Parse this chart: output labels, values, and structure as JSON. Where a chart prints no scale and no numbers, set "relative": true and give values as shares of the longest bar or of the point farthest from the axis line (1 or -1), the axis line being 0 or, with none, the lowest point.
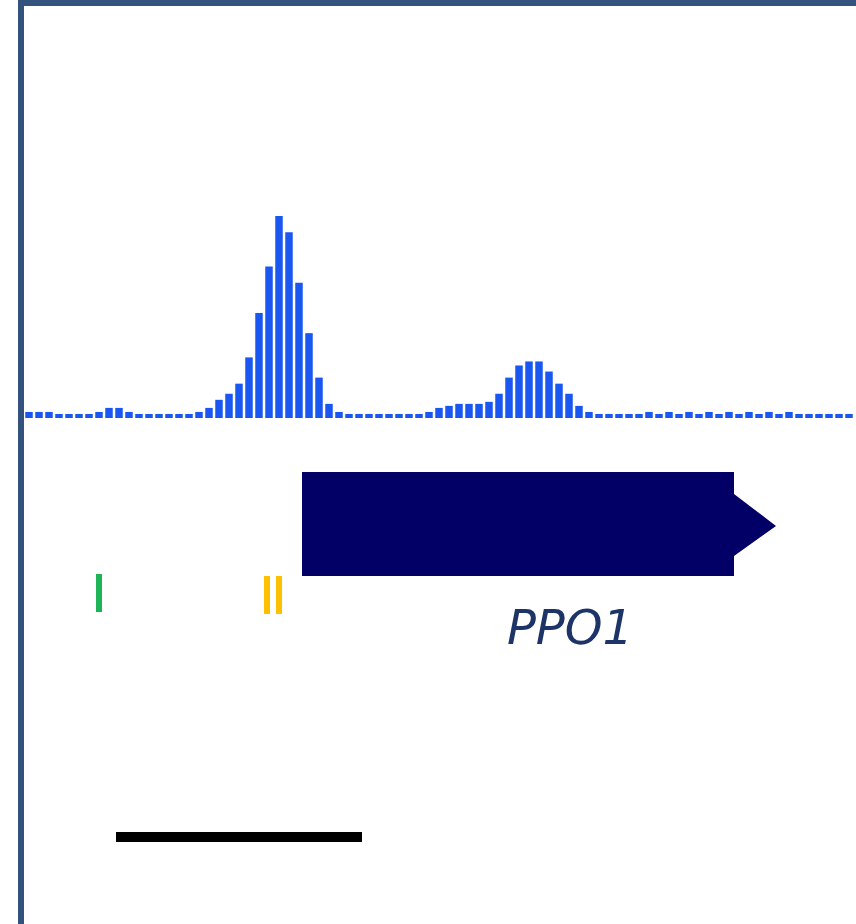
{
  "chart_data": {
    "type": "bar",
    "relative": true,
    "color": "#1a56f0",
    "legend": false,
    "tick_labels": false,
    "categories": [
      null,
      null,
      null,
      null,
      null,
      null,
      null,
      null,
      null,
      null,
      null,
      null,
      null,
      null,
      null,
      null,
      null,
      null,
      null,
      null,
      null,
      null,
      null,
      null,
      null,
      null,
      null,
      null,
      null,
      null,
      null,
      null,
      null,
      null,
      null,
      null,
      null,
      null,
      null,
      null,
      null,
      null,
      null,
      null,
      null,
      null,
      null,
      null,
      null,
      null,
      null,
      null,
      null,
      null,
      null,
      null,
      null,
      null,
      null,
      null,
      null,
      null,
      null,
      null,
      null,
      null,
      null,
      null,
      null,
      null,
      null,
      null,
      null,
      null,
      null,
      null,
      null,
      null,
      null,
      null,
      null,
      null,
      null
    ],
    "values": [
      0.03,
      0.03,
      0.03,
      0.02,
      0.02,
      0.02,
      0.02,
      0.03,
      0.05,
      0.05,
      0.03,
      0.02,
      0.02,
      0.02,
      0.02,
      0.02,
      0.02,
      0.03,
      0.05,
      0.09,
      0.12,
      0.17,
      0.3,
      0.52,
      0.75,
      1,
      0.92,
      0.67,
      0.42,
      0.2,
      0.07,
      0.03,
      0.02,
      0.02,
      0.02,
      0.02,
      0.02,
      0.02,
      0.02,
      0.02,
      0.03,
      0.05,
      0.06,
      0.07,
      0.07,
      0.07,
      0.08,
      0.12,
      0.2,
      0.26,
      0.28,
      0.28,
      0.23,
      0.17,
      0.12,
      0.06,
      0.03,
      0.02,
      0.02,
      0.02,
      0.02,
      0.02,
      0.03,
      0.02,
      0.03,
      0.02,
      0.03,
      0.02,
      0.03,
      0.02,
      0.03,
      0.02,
      0.03,
      0.02,
      0.03,
      0.02,
      0.03,
      0.02,
      0.02,
      0.02,
      0.02,
      0.02,
      0.02
    ],
    "annotations": [
      "PPO1"
    ]
  }
}
